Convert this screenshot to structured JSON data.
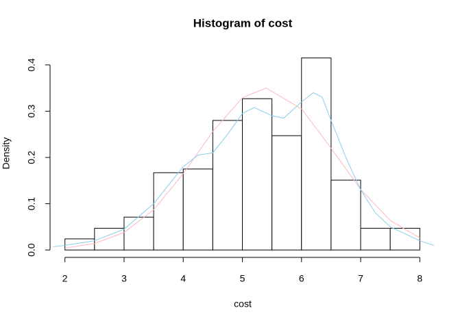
{
  "chart_data": {
    "type": "histogram",
    "title": "Histogram of cost",
    "xlabel": "cost",
    "ylabel": "Density",
    "bins": [
      2,
      2.5,
      3,
      3.5,
      4,
      4.5,
      5,
      5.5,
      6,
      6.5,
      7,
      7.5,
      8
    ],
    "values": [
      0.024,
      0.047,
      0.071,
      0.167,
      0.175,
      0.28,
      0.327,
      0.247,
      0.415,
      0.151,
      0.047,
      0.047
    ],
    "bar_color": "#ffffff",
    "edge_color": "#000000",
    "series": [
      {
        "color": "#ffb6c1",
        "x": [
          2,
          2.5,
          3,
          3.5,
          4,
          4.5,
          5,
          5.4,
          6,
          6.5,
          7,
          7.5,
          8
        ],
        "values": [
          0.004,
          0.014,
          0.038,
          0.087,
          0.165,
          0.256,
          0.329,
          0.35,
          0.305,
          0.22,
          0.131,
          0.064,
          0.026
        ]
      },
      {
        "color": "#87ceeb",
        "x": [
          1.8,
          2,
          2.5,
          3,
          3.5,
          4,
          4.25,
          4.5,
          4.75,
          5,
          5.2,
          5.5,
          5.7,
          6,
          6.2,
          6.35,
          6.5,
          6.75,
          7,
          7.25,
          7.5,
          8,
          8.24
        ],
        "values": [
          0.007,
          0.01,
          0.02,
          0.045,
          0.1,
          0.18,
          0.205,
          0.21,
          0.25,
          0.295,
          0.308,
          0.29,
          0.285,
          0.32,
          0.34,
          0.33,
          0.28,
          0.2,
          0.13,
          0.08,
          0.05,
          0.02,
          0.01
        ]
      }
    ],
    "xlim": [
      1.76,
      8.24
    ],
    "ylim": [
      -0.016,
      0.416
    ],
    "xticks": [
      2,
      3,
      4,
      5,
      6,
      7,
      8
    ],
    "yticks": [
      {
        "value": 0,
        "label": "0.0"
      },
      {
        "value": 0.1,
        "label": "0.1"
      },
      {
        "value": 0.2,
        "label": "0.2"
      },
      {
        "value": 0.3,
        "label": "0.3"
      },
      {
        "value": 0.4,
        "label": "0.4"
      }
    ]
  }
}
